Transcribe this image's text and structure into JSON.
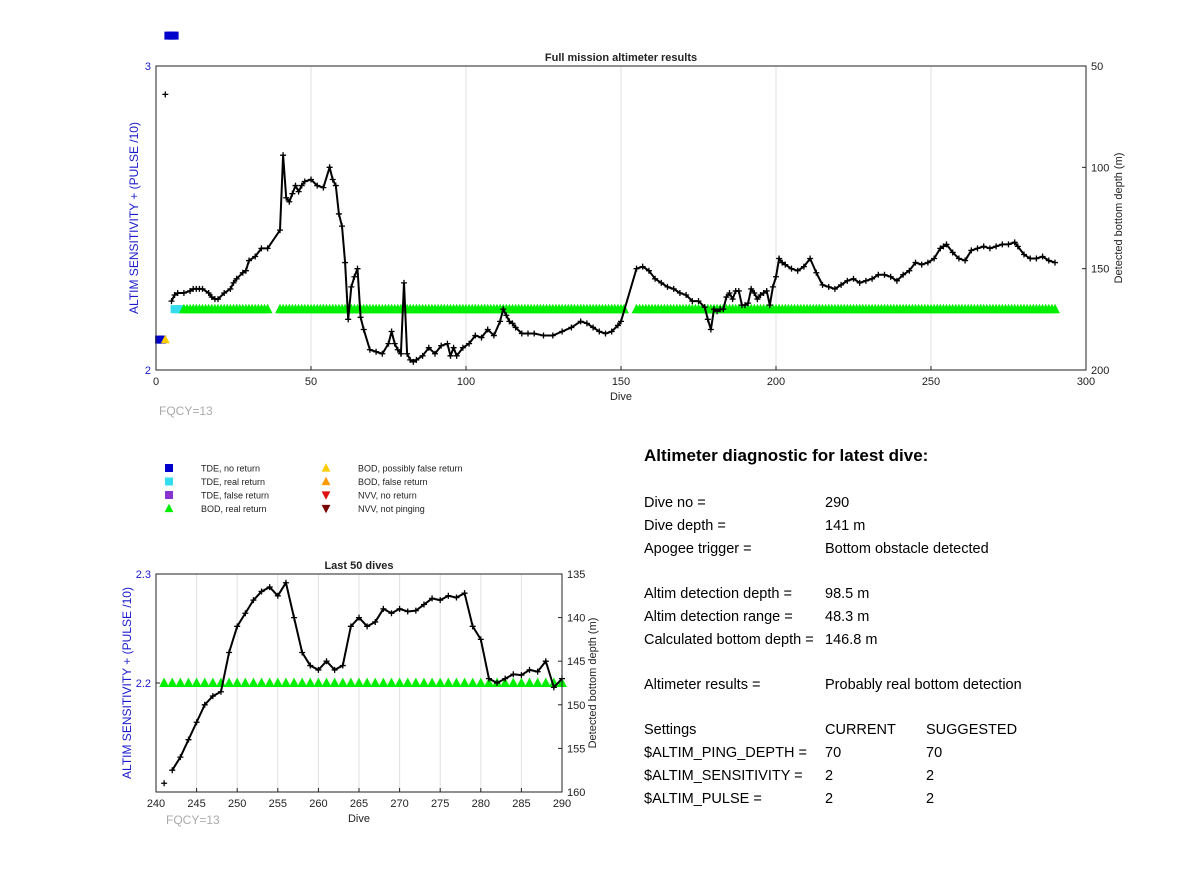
{
  "chart_data": [
    {
      "type": "scatter",
      "title": "Full mission altimeter results",
      "xlabel": "Dive",
      "ylabel": "ALTIM SENSITIVITY + (PULSE /10)",
      "ylabel_right": "Detected bottom depth (m)",
      "xlim": [
        0,
        300
      ],
      "ylim": [
        2,
        3
      ],
      "ylim_right": [
        200,
        50
      ],
      "right_axis_reversed": true,
      "xticks": [
        0,
        50,
        100,
        150,
        200,
        250,
        300
      ],
      "yticks": [
        2,
        3
      ],
      "yticks_right": [
        50,
        100,
        150,
        200
      ],
      "grid": true,
      "annotation": "FQCY=13",
      "series": [
        {
          "name": "TDE, no return",
          "marker": "square",
          "color": "#0000cd",
          "x": [
            1,
            2,
            4,
            5,
            6
          ],
          "y": [
            2.1,
            2.1,
            3.1,
            3.1,
            3.1
          ]
        },
        {
          "name": "TDE, real return",
          "marker": "square",
          "color": "#33ddee",
          "x": [
            6,
            7,
            8
          ],
          "y": [
            2.2,
            2.2,
            2.2
          ]
        },
        {
          "name": "BOD, possibly false return",
          "marker": "triangle-up",
          "color": "#ffcc00",
          "x": [
            3
          ],
          "y": [
            2.1
          ]
        },
        {
          "name": "BOD, real return",
          "marker": "triangle-up",
          "color": "#00ee00",
          "x_ranges": [
            [
              9,
              36
            ],
            [
              40,
              151
            ],
            [
              155,
              290
            ]
          ],
          "step": 1,
          "y": 2.2
        },
        {
          "name": "Detected bottom depth",
          "axis": "right",
          "marker": "plus",
          "color": "#000000",
          "x": [
            3,
            5,
            6,
            7,
            9,
            11,
            12,
            13,
            14,
            15,
            17,
            18,
            19,
            20,
            22,
            24,
            25,
            26,
            28,
            29,
            30,
            32,
            34,
            36,
            40,
            41,
            42,
            43,
            44,
            45,
            46,
            47,
            48,
            50,
            52,
            54,
            56,
            57,
            58,
            59,
            60,
            61,
            62,
            63,
            64,
            65,
            66,
            67,
            69,
            71,
            73,
            75,
            76,
            77,
            78,
            79,
            80,
            81,
            82,
            83,
            84,
            86,
            88,
            90,
            92,
            94,
            95,
            96,
            97,
            99,
            101,
            103,
            105,
            107,
            109,
            111,
            112,
            113,
            114,
            115,
            116,
            118,
            120,
            122,
            125,
            128,
            131,
            134,
            137,
            139,
            141,
            143,
            145,
            147,
            149,
            150,
            155,
            157,
            159,
            161,
            163,
            165,
            167,
            169,
            171,
            173,
            175,
            177,
            178,
            179,
            180,
            181,
            182,
            183,
            184,
            185,
            186,
            187,
            188,
            189,
            190,
            191,
            192,
            193,
            194,
            195,
            196,
            197,
            198,
            199,
            200,
            201,
            202,
            203,
            205,
            207,
            209,
            211,
            213,
            215,
            217,
            219,
            221,
            223,
            225,
            227,
            229,
            231,
            233,
            235,
            237,
            239,
            241,
            243,
            245,
            247,
            249,
            251,
            253,
            254,
            255,
            257,
            259,
            261,
            263,
            265,
            267,
            269,
            271,
            273,
            275,
            277,
            278,
            280,
            282,
            284,
            286,
            288,
            290
          ],
          "y": [
            64,
            166,
            163,
            162,
            162,
            161,
            160,
            160,
            160,
            160,
            162,
            164,
            165,
            165,
            162,
            160,
            157,
            155,
            152,
            151,
            146,
            144,
            140,
            140,
            131,
            94,
            115,
            117,
            113,
            109,
            112,
            109,
            107,
            106,
            109,
            110,
            100,
            106,
            109,
            123,
            129,
            147,
            175,
            159,
            154,
            150,
            174,
            180,
            190,
            191,
            192,
            187,
            181,
            187,
            190,
            192,
            157,
            192,
            195,
            196,
            195,
            193,
            189,
            192,
            188,
            187,
            193,
            189,
            193,
            189,
            187,
            183,
            184,
            180,
            183,
            176,
            170,
            173,
            176,
            177,
            179,
            182,
            182,
            182,
            183,
            183,
            181,
            179,
            176,
            177,
            179,
            181,
            182,
            181,
            178,
            176,
            150,
            149,
            151,
            155,
            157,
            159,
            160,
            162,
            163,
            166,
            166,
            169,
            175,
            180,
            170,
            171,
            170,
            170,
            164,
            162,
            165,
            161,
            161,
            168,
            168,
            167,
            160,
            162,
            165,
            163,
            162,
            161,
            168,
            159,
            154,
            145,
            147,
            148,
            150,
            151,
            149,
            145,
            152,
            158,
            159,
            160,
            158,
            156,
            155,
            157,
            156,
            155,
            153,
            153,
            154,
            156,
            153,
            151,
            147,
            148,
            147,
            145,
            140,
            139,
            138,
            142,
            145,
            146,
            141,
            140,
            139,
            140,
            139,
            138,
            138,
            137,
            139,
            143,
            145,
            145,
            144,
            146,
            147
          ]
        }
      ]
    },
    {
      "type": "scatter",
      "title": "Last 50 dives",
      "xlabel": "Dive",
      "ylabel": "ALTIM SENSITIVITY + (PULSE /10)",
      "ylabel_right": "Detected bottom depth (m)",
      "xlim": [
        240,
        290
      ],
      "ylim": [
        2.1,
        2.3
      ],
      "ylim_right": [
        160,
        135
      ],
      "right_axis_reversed": true,
      "xticks": [
        240,
        245,
        250,
        255,
        260,
        265,
        270,
        275,
        280,
        285,
        290
      ],
      "yticks": [
        2.2,
        2.3
      ],
      "yticks_right": [
        135,
        140,
        145,
        150,
        155,
        160
      ],
      "grid": true,
      "annotation": "FQCY=13",
      "series": [
        {
          "name": "BOD, real return",
          "marker": "triangle-up",
          "color": "#00ee00",
          "x_ranges": [
            [
              241,
              290
            ]
          ],
          "step": 1,
          "y": 2.2
        },
        {
          "name": "Detected bottom depth",
          "axis": "right",
          "marker": "plus",
          "color": "#000000",
          "x": [
            241,
            242,
            243,
            244,
            245,
            246,
            247,
            248,
            249,
            250,
            251,
            252,
            253,
            254,
            255,
            256,
            257,
            258,
            259,
            260,
            261,
            262,
            263,
            264,
            265,
            266,
            267,
            268,
            269,
            270,
            271,
            272,
            273,
            274,
            275,
            276,
            277,
            278,
            279,
            280,
            281,
            282,
            283,
            284,
            285,
            286,
            287,
            288,
            289,
            290
          ],
          "y": [
            159,
            157.5,
            156,
            154,
            152,
            150,
            149,
            148.5,
            144,
            141,
            139.5,
            138,
            137,
            136.5,
            137.5,
            136,
            140,
            144,
            145.5,
            146,
            145,
            146,
            145.5,
            141,
            140,
            141,
            140.5,
            139,
            139.5,
            139,
            139.3,
            139.2,
            138.5,
            137.8,
            138,
            137.5,
            137.7,
            137.2,
            141,
            142.5,
            147,
            147.5,
            147,
            146.5,
            146.6,
            146,
            146.2,
            145,
            148,
            147
          ]
        }
      ]
    }
  ],
  "legend": [
    {
      "label": "TDE, no return",
      "marker": "square",
      "color": "#0000cd"
    },
    {
      "label": "TDE, real return",
      "marker": "square",
      "color": "#33ddee"
    },
    {
      "label": "TDE, false return",
      "marker": "square",
      "color": "#8833cc"
    },
    {
      "label": "BOD, real return",
      "marker": "triangle-up",
      "color": "#00ee00"
    },
    {
      "label": "BOD, possibly false return",
      "marker": "triangle-up",
      "color": "#ffcc00"
    },
    {
      "label": "BOD, false return",
      "marker": "triangle-up",
      "color": "#ff9900"
    },
    {
      "label": "NVV, no return",
      "marker": "triangle-down",
      "color": "#dd1111"
    },
    {
      "label": "NVV, not pinging",
      "marker": "triangle-down",
      "color": "#7a0000"
    }
  ],
  "diagnostic": {
    "title": "Altimeter diagnostic for latest dive:",
    "dive_no_label": "Dive no =",
    "dive_no": "290",
    "dive_depth_label": "Dive depth =",
    "dive_depth": "141 m",
    "apogee_label": "Apogee trigger =",
    "apogee": "Bottom obstacle detected",
    "det_depth_label": "Altim detection depth =",
    "det_depth": "98.5 m",
    "det_range_label": "Altim detection range =",
    "det_range": "48.3 m",
    "calc_depth_label": "Calculated bottom depth =",
    "calc_depth": "146.8 m",
    "results_label": "Altimeter results =",
    "results": "Probably real bottom detection",
    "settings_label": "Settings",
    "current_label": "CURRENT",
    "suggested_label": "SUGGESTED",
    "ping_depth_label": "$ALTIM_PING_DEPTH =",
    "ping_depth_current": "70",
    "ping_depth_suggested": "70",
    "sensitivity_label": "$ALTIM_SENSITIVITY =",
    "sensitivity_current": "2",
    "sensitivity_suggested": "2",
    "pulse_label": "$ALTIM_PULSE =",
    "pulse_current": "2",
    "pulse_suggested": "2"
  }
}
